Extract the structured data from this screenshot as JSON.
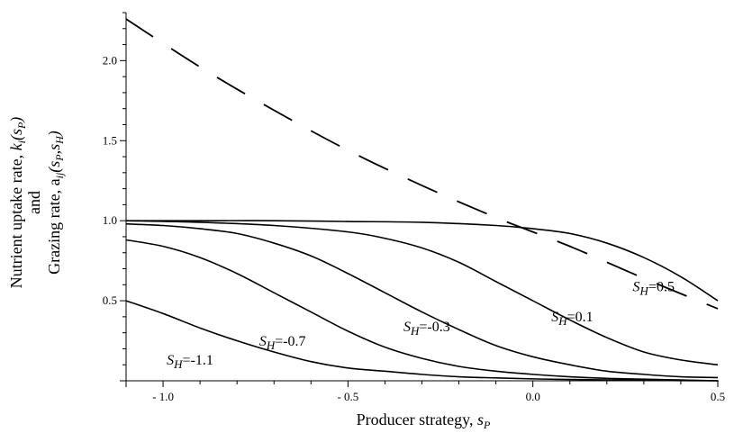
{
  "chart_data": {
    "type": "line",
    "xlabel": {
      "text": "Producer strategy, ",
      "var": "s",
      "sub": "P"
    },
    "ylabel": {
      "line1": {
        "text": "Nutrient uptake rate, ",
        "fn": "k",
        "fn_sub": "i",
        "args": "(s",
        "args_sub": "P",
        "close": ")"
      },
      "line2": "and",
      "line3": {
        "text": "Grazing rate, a",
        "fn_sub": "ij",
        "args": "(s",
        "args_sub1": "P",
        "mid": ",s",
        "args_sub2": "H",
        "close": ")"
      }
    },
    "xlim": [
      -1.1,
      0.5
    ],
    "ylim": [
      0,
      2.3
    ],
    "x_ticks": [
      {
        "value": -1.0,
        "label": "- 1.0"
      },
      {
        "value": -0.5,
        "label": "- 0.5"
      },
      {
        "value": 0.0,
        "label": "0.0"
      },
      {
        "value": 0.5,
        "label": "0.5"
      }
    ],
    "y_ticks": [
      {
        "value": 0.5,
        "label": "0.5"
      },
      {
        "value": 1.0,
        "label": "1.0"
      },
      {
        "value": 1.5,
        "label": "1.5"
      },
      {
        "value": 2.0,
        "label": "2.0"
      }
    ],
    "grid": false,
    "series": [
      {
        "style": "dashed",
        "x": [
          -1.1,
          -0.9,
          -0.7,
          -0.5,
          -0.3,
          -0.1,
          0.1,
          0.3,
          0.5
        ],
        "y": [
          2.26,
          1.96,
          1.69,
          1.44,
          1.22,
          1.02,
          0.84,
          0.64,
          0.45
        ]
      },
      {
        "style": "solid",
        "x": [
          -1.1,
          -0.9,
          -0.7,
          -0.5,
          -0.3,
          -0.1,
          0.0,
          0.1,
          0.2,
          0.3,
          0.4,
          0.5
        ],
        "y": [
          1.0,
          1.0,
          1.0,
          0.995,
          0.99,
          0.97,
          0.95,
          0.92,
          0.86,
          0.77,
          0.65,
          0.5
        ],
        "label": {
          "prefix": "S",
          "sub": "H",
          "value": "=0.5",
          "at_x": 0.27,
          "at_y": 0.56
        }
      },
      {
        "style": "solid",
        "x": [
          -1.1,
          -0.9,
          -0.7,
          -0.5,
          -0.4,
          -0.3,
          -0.2,
          -0.1,
          0.0,
          0.1,
          0.2,
          0.3,
          0.4,
          0.5
        ],
        "y": [
          1.0,
          0.99,
          0.97,
          0.93,
          0.89,
          0.83,
          0.74,
          0.62,
          0.5,
          0.38,
          0.27,
          0.18,
          0.13,
          0.1
        ],
        "label": {
          "prefix": "S",
          "sub": "H",
          "value": "=0.1",
          "at_x": 0.05,
          "at_y": 0.37
        }
      },
      {
        "style": "solid",
        "x": [
          -1.1,
          -1.0,
          -0.9,
          -0.8,
          -0.7,
          -0.6,
          -0.5,
          -0.4,
          -0.3,
          -0.2,
          -0.1,
          0.0,
          0.1,
          0.2,
          0.3,
          0.4,
          0.5
        ],
        "y": [
          0.98,
          0.97,
          0.95,
          0.92,
          0.86,
          0.78,
          0.67,
          0.55,
          0.43,
          0.32,
          0.22,
          0.15,
          0.1,
          0.06,
          0.04,
          0.025,
          0.02
        ],
        "label": {
          "prefix": "S",
          "sub": "H",
          "value": "=-0.3",
          "at_x": -0.35,
          "at_y": 0.31
        }
      },
      {
        "style": "solid",
        "x": [
          -1.1,
          -1.0,
          -0.9,
          -0.8,
          -0.7,
          -0.6,
          -0.5,
          -0.4,
          -0.3,
          -0.2,
          -0.1,
          0.0,
          0.1,
          0.2,
          0.3,
          0.4,
          0.5
        ],
        "y": [
          0.88,
          0.84,
          0.77,
          0.67,
          0.55,
          0.43,
          0.31,
          0.21,
          0.14,
          0.09,
          0.06,
          0.04,
          0.025,
          0.015,
          0.01,
          0.005,
          0.0
        ],
        "label": {
          "prefix": "S",
          "sub": "H",
          "value": "=-0.7",
          "at_x": -0.74,
          "at_y": 0.22
        }
      },
      {
        "style": "solid",
        "x": [
          -1.1,
          -1.0,
          -0.9,
          -0.8,
          -0.7,
          -0.6,
          -0.5,
          -0.4,
          -0.3,
          -0.2,
          -0.1,
          0.0,
          0.1,
          0.3,
          0.5
        ],
        "y": [
          0.5,
          0.42,
          0.33,
          0.25,
          0.18,
          0.12,
          0.08,
          0.06,
          0.04,
          0.025,
          0.018,
          0.012,
          0.008,
          0.003,
          0.0
        ],
        "label": {
          "prefix": "S",
          "sub": "H",
          "value": "=-1.1",
          "at_x": -0.99,
          "at_y": 0.1
        }
      }
    ]
  }
}
